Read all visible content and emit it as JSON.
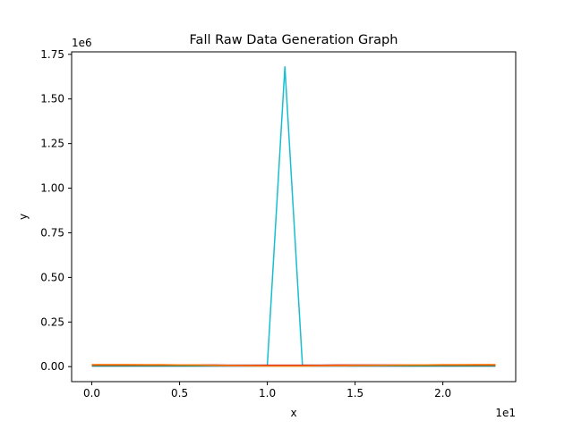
{
  "chart_data": {
    "type": "line",
    "title": "Fall Raw Data Generation Graph",
    "xlabel": "x",
    "ylabel": "y",
    "x_offset_label": "1e1",
    "y_offset_label": "1e6",
    "xlim": [
      -1.15,
      24.15
    ],
    "ylim": [
      -84000,
      1764000
    ],
    "x_ticks": [
      0,
      5,
      10,
      15,
      20
    ],
    "x_tick_labels": [
      "0.0",
      "0.5",
      "1.0",
      "1.5",
      "2.0"
    ],
    "y_ticks": [
      0,
      250000,
      500000,
      750000,
      1000000,
      1250000,
      1500000,
      1750000
    ],
    "y_tick_labels": [
      "0.00",
      "0.25",
      "0.50",
      "0.75",
      "1.00",
      "1.25",
      "1.50",
      "1.75"
    ],
    "grid": false,
    "series": [
      {
        "color": "#17becf",
        "x": [
          0,
          1,
          2,
          3,
          4,
          5,
          6,
          7,
          8,
          9,
          10,
          11,
          12,
          13,
          14,
          15,
          16,
          17,
          18,
          19,
          20,
          21,
          22,
          23
        ],
        "values": [
          8000,
          8000,
          8000,
          8000,
          8000,
          8000,
          8000,
          8000,
          8000,
          8000,
          8000,
          1680000,
          8000,
          8000,
          8000,
          8000,
          8000,
          8000,
          8000,
          8000,
          8000,
          8000,
          8000,
          8000
        ]
      },
      {
        "color": "#1f77b4",
        "x": [
          0,
          1,
          2,
          3,
          4,
          5,
          6,
          7,
          8,
          9,
          10,
          11,
          12,
          13,
          14,
          15,
          16,
          17,
          18,
          19,
          20,
          21,
          22,
          23
        ],
        "values": [
          3000,
          3000,
          3000,
          3000,
          3000,
          3000,
          3000,
          3000,
          3000,
          3000,
          3000,
          3000,
          3000,
          3000,
          3000,
          3000,
          3000,
          3000,
          3000,
          3000,
          3000,
          3000,
          3000,
          3000
        ]
      },
      {
        "color": "#2ca02c",
        "x": [
          0,
          1,
          2,
          3,
          4,
          5,
          6,
          7,
          8,
          9,
          10,
          11,
          12,
          13,
          14,
          15,
          16,
          17,
          18,
          19,
          20,
          21,
          22,
          23
        ],
        "values": [
          6000,
          6000,
          6000,
          6000,
          6000,
          6000,
          6000,
          6000,
          5000,
          5000,
          5000,
          5000,
          5000,
          5000,
          6000,
          6000,
          6000,
          6000,
          6000,
          6000,
          6000,
          6000,
          6000,
          6000
        ]
      },
      {
        "color": "#d62728",
        "x": [
          0,
          1,
          2,
          3,
          4,
          5,
          6,
          7,
          8,
          9,
          10,
          11,
          12,
          13,
          14,
          15,
          16,
          17,
          18,
          19,
          20,
          21,
          22,
          23
        ],
        "values": [
          9000,
          9000,
          9000,
          9000,
          9000,
          9000,
          9000,
          9000,
          8000,
          8000,
          8000,
          8000,
          8000,
          8000,
          9000,
          9000,
          9000,
          9000,
          9000,
          9000,
          9000,
          9000,
          9000,
          9000
        ]
      },
      {
        "color": "#ff7f0e",
        "x": [
          0,
          1,
          2,
          3,
          4,
          5,
          6,
          7,
          8,
          9,
          10,
          11,
          12,
          13,
          14,
          15,
          16,
          17,
          18,
          19,
          20,
          21,
          22,
          23
        ],
        "values": [
          12000,
          12000,
          12000,
          11000,
          11000,
          10000,
          9000,
          7000,
          5000,
          4000,
          3000,
          3000,
          3000,
          4000,
          5000,
          6000,
          7000,
          8000,
          9000,
          10000,
          11000,
          11000,
          12000,
          12000
        ]
      }
    ]
  }
}
